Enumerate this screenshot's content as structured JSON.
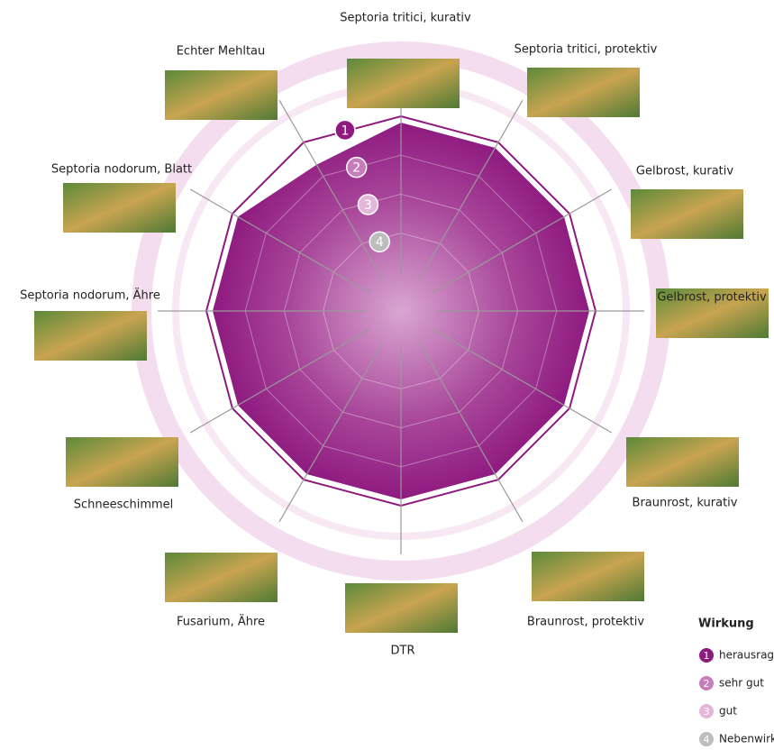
{
  "chart_data": {
    "type": "radar",
    "categories": [
      "Septoria tritici, kurativ",
      "Septoria tritici, protektiv",
      "Gelbrost, kurativ",
      "Gelbrost, protektiv",
      "Braunrost, kurativ",
      "Braunrost, protektiv",
      "DTR",
      "Fusarium, Ähre",
      "Schneeschimmel",
      "Septoria nodorum, Ähre",
      "Septoria nodorum, Blatt",
      "Echter Mehltau"
    ],
    "values": [
      1,
      1,
      1,
      1,
      1,
      1,
      1,
      1,
      1,
      1,
      1,
      1.5
    ],
    "color": "#8e1a7f",
    "rlim": [
      6,
      1
    ],
    "rticks": [
      1,
      2,
      3,
      4
    ],
    "legend_title": "Wirkung",
    "legend": [
      "herausragend",
      "sehr gut",
      "gut",
      "Nebenwirkung"
    ],
    "legend_colors": [
      "#8e1a7f",
      "#c77dbb",
      "#e3b6da",
      "#bdbdbd"
    ]
  }
}
